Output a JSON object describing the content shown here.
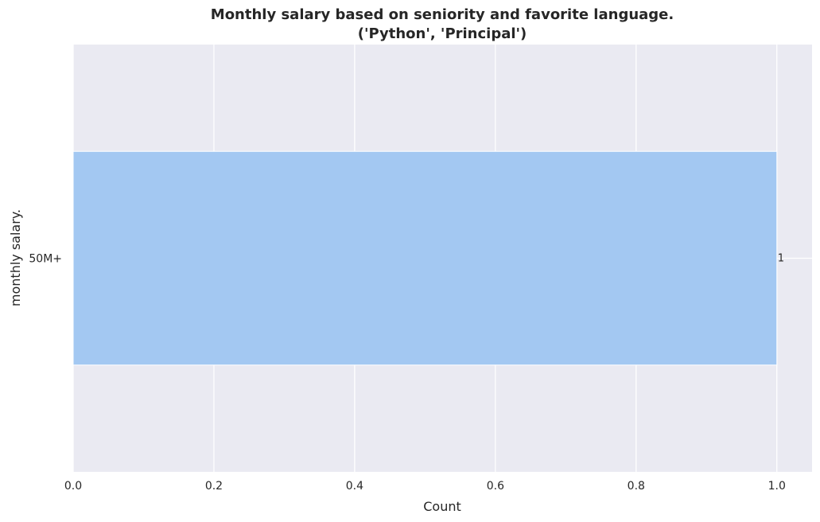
{
  "chart_data": {
    "type": "bar",
    "orientation": "horizontal",
    "title": "Monthly salary based on seniority and favorite language.",
    "subtitle": "('Python', 'Principal')",
    "xlabel": "Count",
    "ylabel": "monthly salary.",
    "categories": [
      "50M+"
    ],
    "values": [
      1
    ],
    "data_labels": [
      "1"
    ],
    "xlim": [
      0,
      1.05
    ],
    "xticks": [
      0.0,
      0.2,
      0.4,
      0.6,
      0.8,
      1.0
    ],
    "xtick_labels": [
      "0.0",
      "0.2",
      "0.4",
      "0.6",
      "0.8",
      "1.0"
    ],
    "grid": true,
    "colors": {
      "background": "#eaeaf2",
      "grid": "#ffffff",
      "bar": "#a3c8f2"
    }
  }
}
